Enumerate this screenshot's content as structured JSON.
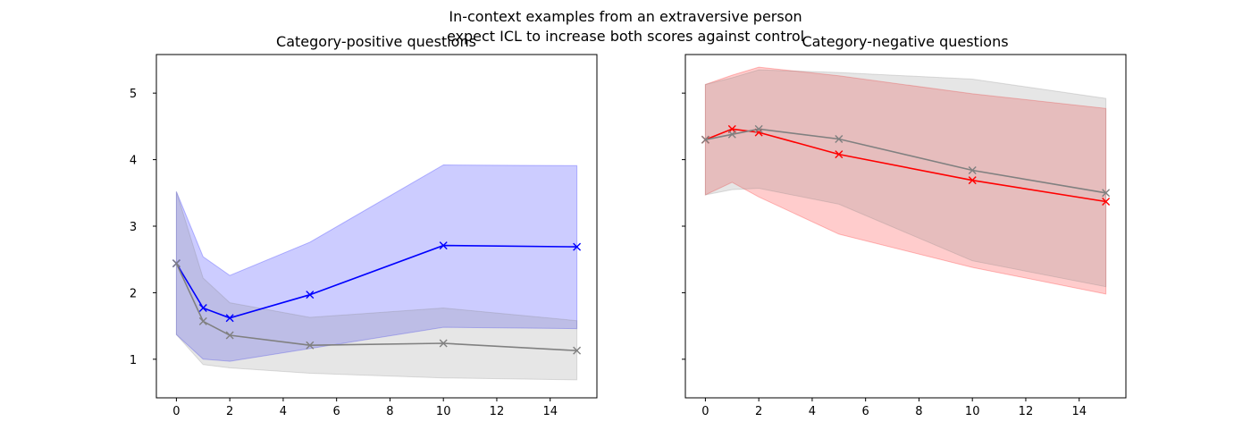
{
  "figure": {
    "suptitle_line1": "In-context examples from an extraversive person",
    "suptitle_line2": "expect ICL to increase both scores against control"
  },
  "chart_data": [
    {
      "type": "line",
      "title": "Category-positive questions",
      "xlabel": "",
      "ylabel": "",
      "xlim": [
        -0.75,
        15.75
      ],
      "ylim": [
        0.42,
        5.58
      ],
      "xticks": [
        0,
        2,
        4,
        6,
        8,
        10,
        12,
        14
      ],
      "yticks": [
        1,
        2,
        3,
        4,
        5
      ],
      "show_ytick_labels": true,
      "grid": false,
      "series": [
        {
          "color": "#0000ff",
          "band_color": "#0000ff",
          "marker": "x",
          "x": [
            0,
            1,
            2,
            5,
            10,
            15
          ],
          "y": [
            2.44,
            1.77,
            1.62,
            1.97,
            2.71,
            2.69
          ],
          "band_upper": [
            3.52,
            2.54,
            2.26,
            2.76,
            3.92,
            3.91
          ],
          "band_lower": [
            1.37,
            1.0,
            0.97,
            1.16,
            1.48,
            1.46
          ]
        },
        {
          "color": "#808080",
          "band_color": "#808080",
          "marker": "x",
          "x": [
            0,
            1,
            2,
            5,
            10,
            15
          ],
          "y": [
            2.44,
            1.57,
            1.36,
            1.21,
            1.24,
            1.13
          ],
          "band_upper": [
            3.52,
            2.22,
            1.85,
            1.63,
            1.77,
            1.58
          ],
          "band_lower": [
            1.37,
            0.92,
            0.87,
            0.79,
            0.72,
            0.69
          ]
        }
      ]
    },
    {
      "type": "line",
      "title": "Category-negative questions",
      "xlabel": "",
      "ylabel": "",
      "xlim": [
        -0.75,
        15.75
      ],
      "ylim": [
        0.42,
        5.58
      ],
      "xticks": [
        0,
        2,
        4,
        6,
        8,
        10,
        12,
        14
      ],
      "yticks": [
        1,
        2,
        3,
        4,
        5
      ],
      "show_ytick_labels": false,
      "grid": false,
      "series": [
        {
          "color": "#ff0000",
          "band_color": "#ff0000",
          "marker": "x",
          "x": [
            0,
            1,
            2,
            5,
            10,
            15
          ],
          "y": [
            4.3,
            4.46,
            4.41,
            4.08,
            3.69,
            3.37
          ],
          "band_upper": [
            5.13,
            5.27,
            5.39,
            5.26,
            4.99,
            4.77
          ],
          "band_lower": [
            3.47,
            3.66,
            3.44,
            2.88,
            2.38,
            1.98
          ]
        },
        {
          "color": "#808080",
          "band_color": "#808080",
          "marker": "x",
          "x": [
            0,
            1,
            2,
            5,
            10,
            15
          ],
          "y": [
            4.3,
            4.38,
            4.46,
            4.31,
            3.84,
            3.5
          ],
          "band_upper": [
            5.13,
            5.23,
            5.35,
            5.31,
            5.21,
            4.92
          ],
          "band_lower": [
            3.47,
            3.55,
            3.57,
            3.33,
            2.48,
            2.09
          ]
        }
      ]
    }
  ]
}
